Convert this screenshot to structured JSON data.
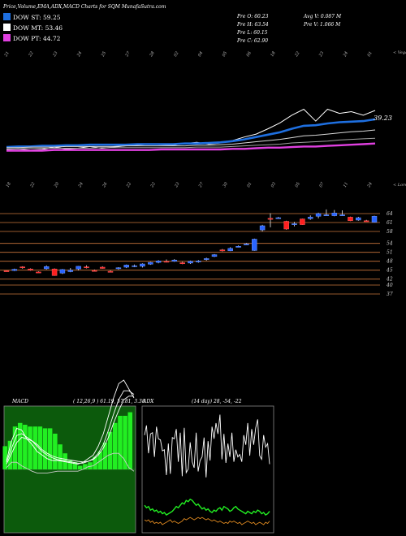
{
  "header": {
    "title": "Price,Volume,EMA,ADX,MACD Charts for SQM MunafaSutra.com",
    "open": "Pre  O: 60.23",
    "high": "Pre  H: 63.54",
    "low": "Pre  L: 60.15",
    "close": "Pre  C: 62.90",
    "avg_vol": "Avg V: 0.087  M",
    "pre_vol": "Pre  V: 1.066  M"
  },
  "legend": [
    {
      "label": "DOW ST: 59.25",
      "color": "#1e6fe0"
    },
    {
      "label": "DOW MT: 53.46",
      "color": "#ffffff"
    },
    {
      "label": "DOW PT: 44.72",
      "color": "#e040e0"
    }
  ],
  "chart_data": [
    {
      "type": "line",
      "name": "ema_panel",
      "top_date_labels": [
        "21",
        "22",
        "23",
        "24",
        "25",
        "27",
        "28",
        "02",
        "04",
        "05",
        "06",
        "18",
        "22",
        "23",
        "24",
        "01"
      ],
      "bottom_date_labels": [
        "18",
        "22",
        "20",
        "24",
        "26",
        "22",
        "22",
        "23",
        "27",
        "30",
        "01",
        "03",
        "05",
        "07",
        "11",
        "24"
      ],
      "corner_top": "< Vega",
      "price_label": "39.23",
      "series": [
        {
          "values": [
            35.2,
            35.3,
            35.1,
            35.2,
            35.6,
            35.3,
            35.4,
            35.7,
            35.4,
            35.6,
            35.8,
            35.9,
            36.1,
            36.0,
            35.9,
            36.2,
            36.4,
            36.1,
            36.3,
            36.7,
            37.3,
            37.8,
            38.7,
            39.7,
            41.0,
            42.0,
            40.0,
            42.0,
            41.3,
            41.6,
            41.0,
            41.8
          ]
        },
        {
          "values": [
            35.6,
            35.7,
            35.7,
            35.8,
            35.8,
            35.9,
            35.9,
            36.0,
            36.0,
            36.0,
            36.0,
            36.1,
            36.1,
            36.1,
            36.1,
            36.2,
            36.2,
            36.3,
            36.4,
            36.6,
            36.9,
            37.3,
            37.7,
            38.1,
            38.7,
            39.2,
            39.3,
            39.6,
            39.8,
            39.9,
            40.0,
            40.3
          ]
        },
        {
          "values": [
            35.5,
            35.5,
            35.6,
            35.6,
            35.6,
            35.7,
            35.7,
            35.7,
            35.7,
            35.7,
            35.8,
            35.8,
            35.8,
            35.8,
            35.8,
            35.8,
            35.9,
            35.9,
            36.0,
            36.1,
            36.3,
            36.5,
            36.7,
            36.9,
            37.2,
            37.5,
            37.6,
            37.8,
            38.0,
            38.2,
            38.3,
            38.5
          ]
        },
        {
          "values": [
            35.3,
            35.3,
            35.4,
            35.4,
            35.4,
            35.4,
            35.4,
            35.4,
            35.5,
            35.5,
            35.5,
            35.5,
            35.5,
            35.5,
            35.5,
            35.5,
            35.6,
            35.6,
            35.6,
            35.7,
            35.8,
            35.9,
            36.0,
            36.1,
            36.3,
            36.4,
            36.5,
            36.6,
            36.8,
            36.9,
            37.0,
            37.1
          ]
        },
        {
          "values": [
            35.0,
            35.0,
            35.0,
            35.0,
            35.1,
            35.1,
            35.1,
            35.1,
            35.1,
            35.1,
            35.1,
            35.1,
            35.1,
            35.2,
            35.2,
            35.2,
            35.2,
            35.2,
            35.2,
            35.3,
            35.3,
            35.4,
            35.5,
            35.5,
            35.6,
            35.7,
            35.7,
            35.8,
            35.9,
            36.0,
            36.1,
            36.2
          ]
        }
      ]
    },
    {
      "type": "candlestick",
      "name": "price_panel",
      "corner_top": "< Lorem",
      "y_ticks": [
        64,
        61,
        58,
        54,
        51,
        48,
        45,
        42,
        40,
        37
      ],
      "candles": [
        {
          "o": 44.8,
          "h": 44.9,
          "l": 44.6,
          "c": 44.6
        },
        {
          "o": 44.9,
          "h": 45.5,
          "l": 44.7,
          "c": 45.3
        },
        {
          "o": 46.1,
          "h": 46.3,
          "l": 45.5,
          "c": 46.0
        },
        {
          "o": 45.4,
          "h": 45.6,
          "l": 44.8,
          "c": 45.0
        },
        {
          "o": 44.4,
          "h": 44.6,
          "l": 44.2,
          "c": 44.3
        },
        {
          "o": 45.5,
          "h": 46.6,
          "l": 45.2,
          "c": 46.2
        },
        {
          "o": 45.4,
          "h": 45.6,
          "l": 43.1,
          "c": 43.2
        },
        {
          "o": 44.0,
          "h": 45.4,
          "l": 43.7,
          "c": 45.2
        },
        {
          "o": 44.5,
          "h": 45.7,
          "l": 44.3,
          "c": 45.0
        },
        {
          "o": 45.4,
          "h": 46.4,
          "l": 45.0,
          "c": 46.3
        },
        {
          "o": 46.1,
          "h": 46.6,
          "l": 45.6,
          "c": 45.9
        },
        {
          "o": 44.9,
          "h": 45.2,
          "l": 44.6,
          "c": 44.8
        },
        {
          "o": 46.0,
          "h": 46.3,
          "l": 45.5,
          "c": 45.6
        },
        {
          "o": 44.6,
          "h": 44.9,
          "l": 44.4,
          "c": 44.5
        },
        {
          "o": 45.5,
          "h": 46.0,
          "l": 45.2,
          "c": 45.8
        },
        {
          "o": 46.0,
          "h": 46.9,
          "l": 45.7,
          "c": 46.7
        },
        {
          "o": 46.3,
          "h": 46.9,
          "l": 46.0,
          "c": 46.5
        },
        {
          "o": 46.3,
          "h": 47.3,
          "l": 45.9,
          "c": 47.1
        },
        {
          "o": 47.0,
          "h": 47.8,
          "l": 46.8,
          "c": 47.6
        },
        {
          "o": 47.6,
          "h": 48.4,
          "l": 47.3,
          "c": 48.1
        },
        {
          "o": 48.0,
          "h": 48.6,
          "l": 47.6,
          "c": 47.8
        },
        {
          "o": 48.0,
          "h": 48.7,
          "l": 47.8,
          "c": 48.4
        },
        {
          "o": 47.5,
          "h": 47.8,
          "l": 47.0,
          "c": 47.3
        },
        {
          "o": 47.4,
          "h": 48.2,
          "l": 47.1,
          "c": 48.0
        },
        {
          "o": 47.8,
          "h": 48.4,
          "l": 47.5,
          "c": 48.1
        },
        {
          "o": 48.6,
          "h": 49.2,
          "l": 48.2,
          "c": 48.9
        },
        {
          "o": 49.6,
          "h": 50.4,
          "l": 49.4,
          "c": 50.2
        },
        {
          "o": 51.8,
          "h": 52.1,
          "l": 51.3,
          "c": 51.5
        },
        {
          "o": 51.5,
          "h": 52.7,
          "l": 51.4,
          "c": 52.3
        },
        {
          "o": 52.8,
          "h": 53.3,
          "l": 52.7,
          "c": 53.0
        },
        {
          "o": 53.8,
          "h": 54.1,
          "l": 53.5,
          "c": 53.8
        },
        {
          "o": 51.6,
          "h": 55.6,
          "l": 51.5,
          "c": 55.4
        },
        {
          "o": 58.5,
          "h": 60.2,
          "l": 58.0,
          "c": 59.9
        },
        {
          "o": 62.4,
          "h": 64.1,
          "l": 59.4,
          "c": 62.2
        },
        {
          "o": 62.6,
          "h": 62.9,
          "l": 62.3,
          "c": 62.6
        },
        {
          "o": 61.4,
          "h": 61.6,
          "l": 58.6,
          "c": 58.8
        },
        {
          "o": 60.4,
          "h": 61.2,
          "l": 59.7,
          "c": 60.6
        },
        {
          "o": 62.2,
          "h": 62.3,
          "l": 60.2,
          "c": 60.3
        },
        {
          "o": 62.3,
          "h": 63.4,
          "l": 61.9,
          "c": 62.8
        },
        {
          "o": 63.1,
          "h": 64.3,
          "l": 62.4,
          "c": 64.0
        },
        {
          "o": 63.5,
          "h": 65.4,
          "l": 63.3,
          "c": 63.6
        },
        {
          "o": 63.3,
          "h": 65.2,
          "l": 63.1,
          "c": 64.2
        },
        {
          "o": 63.6,
          "h": 65.1,
          "l": 63.5,
          "c": 63.6
        },
        {
          "o": 62.8,
          "h": 63.0,
          "l": 61.5,
          "c": 61.6
        },
        {
          "o": 61.8,
          "h": 62.9,
          "l": 61.6,
          "c": 62.6
        },
        {
          "o": 61.6,
          "h": 61.9,
          "l": 61.3,
          "c": 61.4
        },
        {
          "o": 61.1,
          "h": 63.3,
          "l": 61.0,
          "c": 63.1
        }
      ]
    },
    {
      "type": "line",
      "name": "macd_panel",
      "label": "MACD",
      "params": "( 12,26,9 ) 61.19, 57.81, 3.38",
      "series": [
        {
          "values": [
            0.5,
            1.6,
            2.3,
            2.2,
            1.7,
            1.4,
            1.0,
            0.8,
            0.6,
            0.5,
            0.5,
            0.45,
            0.4,
            0.35,
            0.3,
            0.4,
            0.6,
            0.8,
            1.3,
            2.0,
            3.0,
            4.0,
            4.8,
            5.0,
            4.5,
            4.0
          ]
        },
        {
          "values": [
            0.4,
            1.2,
            1.9,
            2.0,
            1.8,
            1.6,
            1.3,
            1.0,
            0.8,
            0.65,
            0.55,
            0.5,
            0.45,
            0.4,
            0.35,
            0.35,
            0.45,
            0.6,
            0.9,
            1.4,
            2.2,
            3.1,
            3.9,
            4.4,
            4.4,
            4.2
          ]
        },
        {
          "values": [
            0.3,
            0.9,
            1.5,
            1.8,
            1.7,
            1.6,
            1.4,
            1.1,
            0.9,
            0.75,
            0.65,
            0.6,
            0.55,
            0.5,
            0.45,
            0.42,
            0.45,
            0.55,
            0.8,
            1.2,
            1.8,
            2.6,
            3.3,
            3.9,
            4.1,
            4.1
          ]
        },
        {
          "values": [
            0.1,
            0.4,
            0.4,
            0.2,
            0.05,
            -0.1,
            -0.2,
            -0.2,
            -0.2,
            -0.15,
            -0.1,
            -0.1,
            -0.1,
            -0.1,
            -0.1,
            0.0,
            0.15,
            0.2,
            0.4,
            0.6,
            0.8,
            0.9,
            0.9,
            0.6,
            0.1,
            -0.1
          ]
        },
        {
          "values": [
            1.3,
            1.6,
            2.4,
            2.6,
            2.5,
            2.4,
            2.4,
            2.4,
            2.3,
            2.3,
            2.0,
            1.4,
            0.9,
            0.5,
            0.4,
            0.2,
            0.3,
            0.4,
            0.7,
            1.0,
            1.5,
            2.1,
            2.6,
            3.0,
            3.0,
            3.2
          ]
        }
      ]
    },
    {
      "type": "line",
      "name": "adx_panel",
      "label": "ADX",
      "params": "(14  day) 28,  -54,  -22",
      "series": [
        {
          "values": [
            78,
            86,
            63,
            79,
            80,
            60,
            85,
            75,
            74,
            65,
            66,
            45,
            71,
            46,
            76,
            75,
            83,
            56,
            80,
            44,
            84,
            47,
            50,
            72,
            56,
            51,
            80,
            48,
            57,
            60,
            76,
            43,
            73,
            57,
            85,
            75,
            88,
            79,
            95,
            58,
            79,
            55,
            71,
            60,
            80,
            56,
            66,
            60,
            62,
            56,
            78,
            70,
            88,
            61,
            83,
            70,
            84,
            91,
            61,
            58,
            78,
            68,
            71,
            54
          ]
        },
        {
          "values": [
            20,
            18,
            19,
            16,
            17,
            15,
            16,
            14,
            15,
            13,
            14,
            12,
            13,
            14,
            15,
            17,
            19,
            18,
            20,
            22,
            21,
            24,
            23,
            25,
            24,
            22,
            20,
            21,
            19,
            17,
            18,
            16,
            17,
            15,
            14,
            16,
            15,
            17,
            18,
            16,
            19,
            18,
            17,
            15,
            16,
            18,
            19,
            17,
            16,
            15,
            14,
            13,
            15,
            14,
            13,
            15,
            14,
            16,
            15,
            13,
            14,
            12,
            13,
            15
          ]
        },
        {
          "values": [
            8,
            7,
            8,
            6,
            7,
            5,
            6,
            5,
            6,
            4,
            5,
            6,
            7,
            8,
            6,
            7,
            6,
            5,
            6,
            7,
            9,
            8,
            9,
            10,
            9,
            8,
            9,
            10,
            9,
            10,
            9,
            8,
            9,
            8,
            7,
            8,
            7,
            6,
            7,
            6,
            5,
            6,
            5,
            7,
            6,
            7,
            6,
            5,
            6,
            4,
            5,
            6,
            7,
            6,
            5,
            6,
            4,
            5,
            6,
            5,
            4,
            6,
            5,
            7
          ]
        }
      ]
    }
  ]
}
